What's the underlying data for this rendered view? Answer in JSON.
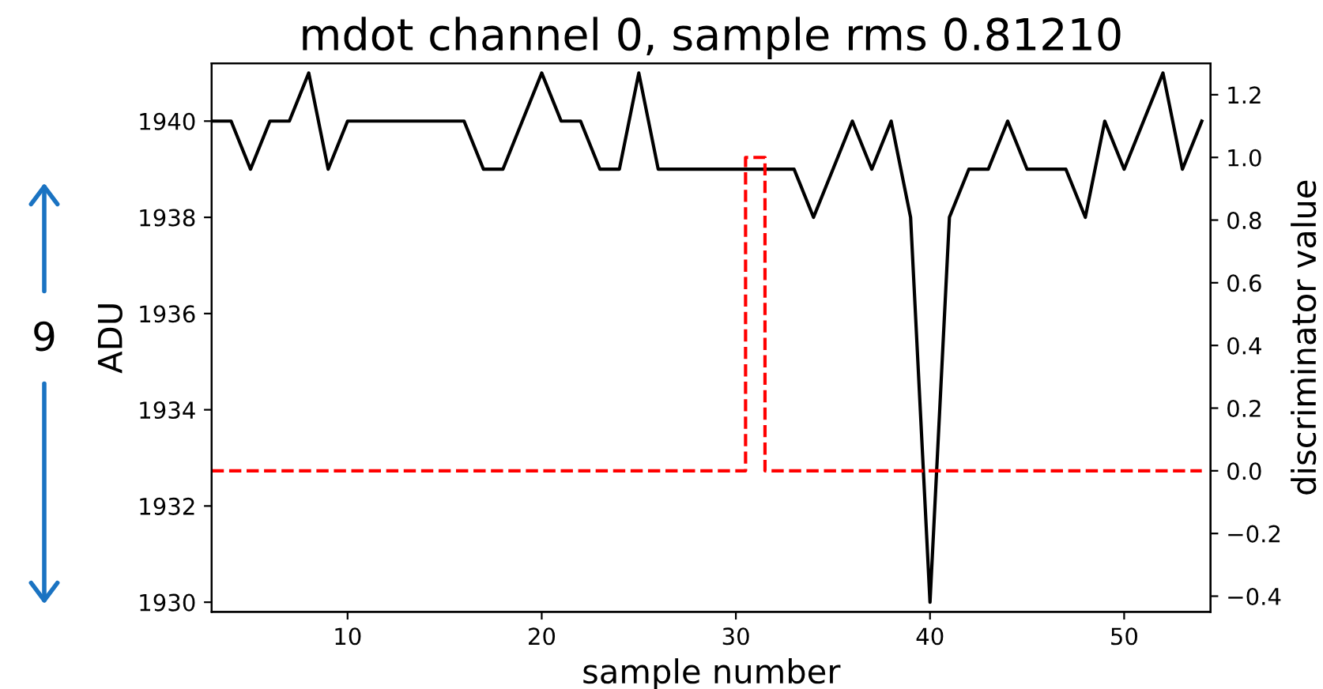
{
  "chart_data": {
    "type": "line",
    "title": "mdot channel 0, sample rms 0.81210",
    "xlabel": "sample number",
    "ylabel": "ADU",
    "y2label": "discriminator value",
    "x": [
      3,
      4,
      5,
      6,
      7,
      8,
      9,
      10,
      11,
      12,
      13,
      14,
      15,
      16,
      17,
      18,
      19,
      20,
      21,
      22,
      23,
      24,
      25,
      26,
      27,
      28,
      29,
      30,
      31,
      32,
      33,
      34,
      35,
      36,
      37,
      38,
      39,
      40,
      41,
      42,
      43,
      44,
      45,
      46,
      47,
      48,
      49,
      50,
      51,
      52,
      53,
      54
    ],
    "series": [
      {
        "color": "#000000",
        "line_style": "solid",
        "values": [
          1940,
          1940,
          1939,
          1940,
          1940,
          1941,
          1939,
          1940,
          1940,
          1940,
          1940,
          1940,
          1940,
          1940,
          1939,
          1939,
          1940,
          1941,
          1940,
          1940,
          1939,
          1939,
          1941,
          1939,
          1939,
          1939,
          1939,
          1939,
          1939,
          1939,
          1939,
          1938,
          1939,
          1940,
          1939,
          1940,
          1938,
          1930,
          1938,
          1939,
          1939,
          1940,
          1939,
          1939,
          1939,
          1938,
          1940,
          1939,
          1940,
          1941,
          1939,
          1940
        ]
      },
      {
        "type": "step",
        "axis": "y2",
        "color": "#ff0000",
        "line_style": "dashed",
        "values": [
          0,
          0,
          0,
          0,
          0,
          0,
          0,
          0,
          0,
          0,
          0,
          0,
          0,
          0,
          0,
          0,
          0,
          0,
          0,
          0,
          0,
          0,
          0,
          0,
          0,
          0,
          0,
          0,
          1,
          0,
          0,
          0,
          0,
          0,
          0,
          0,
          0,
          0,
          0,
          0,
          0,
          0,
          0,
          0,
          0,
          0,
          0,
          0,
          0,
          0,
          0,
          0
        ]
      }
    ],
    "xlim": [
      3,
      54.45
    ],
    "xticks": [
      10,
      20,
      30,
      40,
      50
    ],
    "ylim": [
      1929.8,
      1941.2
    ],
    "yticks": [
      1930,
      1932,
      1934,
      1936,
      1938,
      1940
    ],
    "y2lim": [
      -0.45,
      1.3
    ],
    "y2ticks": [
      {
        "value": -0.4,
        "label": "−0.4"
      },
      {
        "value": -0.2,
        "label": "−0.2"
      },
      {
        "value": 0,
        "label": "0.0"
      },
      {
        "value": 0.2,
        "label": "0.2"
      },
      {
        "value": 0.4,
        "label": "0.4"
      },
      {
        "value": 0.6,
        "label": "0.6"
      },
      {
        "value": 0.8,
        "label": "0.8"
      },
      {
        "value": 1.0,
        "label": "1.0"
      },
      {
        "value": 1.2,
        "label": "1.2"
      }
    ],
    "annotations": [
      "9"
    ]
  }
}
